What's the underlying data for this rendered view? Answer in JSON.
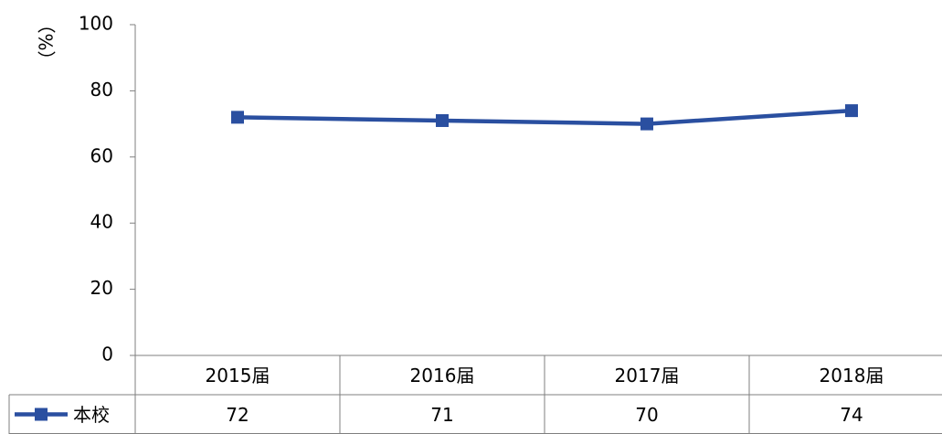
{
  "chart_data": {
    "type": "line",
    "y_label": "（%）",
    "categories": [
      "2015届",
      "2016届",
      "2017届",
      "2018届"
    ],
    "series": [
      {
        "name": "本校",
        "color": "#2a4fa0",
        "values": [
          72,
          71,
          70,
          74
        ]
      }
    ],
    "ylim": [
      0,
      100
    ],
    "yticks": [
      0,
      20,
      40,
      60,
      80,
      100
    ],
    "grid": false
  }
}
